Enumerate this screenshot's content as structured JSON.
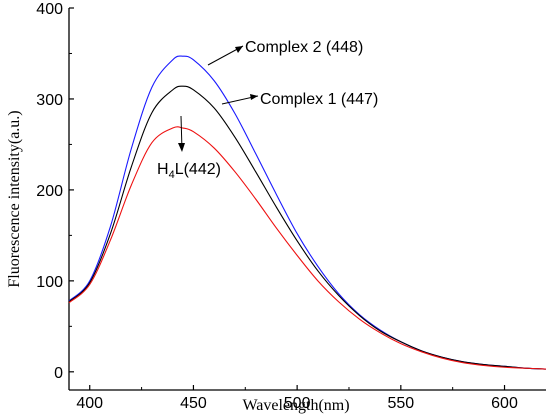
{
  "chart_data": {
    "type": "line",
    "xlabel": "Wavelength(nm)",
    "ylabel": "Fluorescence intensity(a.u.)",
    "xlim": [
      390,
      620
    ],
    "ylim": [
      -20,
      400
    ],
    "xticks": [
      400,
      450,
      500,
      550,
      600
    ],
    "yticks": [
      0,
      100,
      200,
      300,
      400
    ],
    "x": [
      390,
      400,
      410,
      420,
      430,
      440,
      445,
      450,
      460,
      470,
      480,
      490,
      500,
      510,
      520,
      530,
      540,
      550,
      560,
      570,
      580,
      590,
      600,
      610,
      620
    ],
    "series": [
      {
        "name": "Complex 2",
        "annotation_label": "Complex 2  (448)",
        "color": "#1a1aff",
        "values": [
          78,
          100,
          160,
          245,
          313,
          343,
          347,
          343,
          320,
          284,
          240,
          195,
          152,
          116,
          86,
          63,
          46,
          33,
          23,
          16,
          11,
          8,
          6,
          4,
          3
        ]
      },
      {
        "name": "Complex 1",
        "annotation_label": "Complex 1 (447)",
        "color": "#000000",
        "values": [
          77,
          98,
          152,
          225,
          285,
          310,
          314,
          310,
          290,
          258,
          220,
          181,
          144,
          111,
          84,
          62,
          45,
          33,
          23,
          16,
          11,
          8,
          6,
          4,
          3
        ]
      },
      {
        "name": "H4L",
        "annotation_prefix": "H",
        "annotation_sub": "4",
        "annotation_suffix": "L(442)",
        "color": "#ee1111",
        "values": [
          76,
          96,
          145,
          205,
          252,
          268,
          268,
          264,
          246,
          220,
          190,
          158,
          128,
          100,
          77,
          58,
          43,
          31,
          22,
          15,
          10,
          7,
          5,
          4,
          3
        ]
      }
    ]
  }
}
